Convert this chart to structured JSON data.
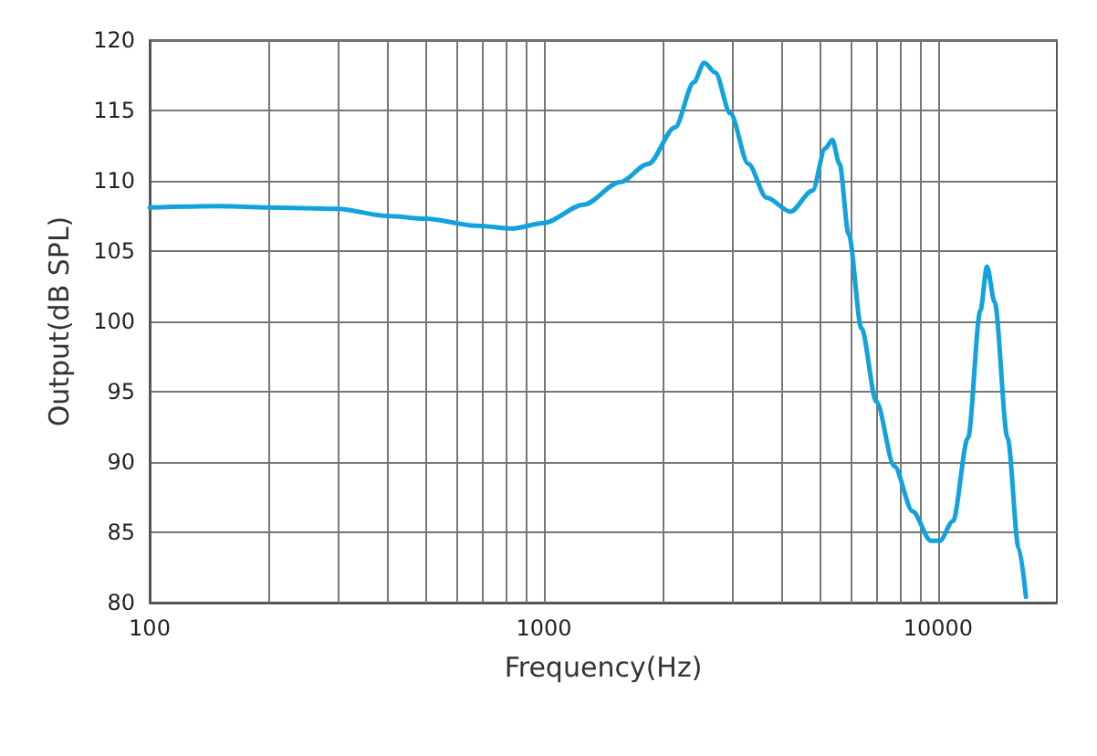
{
  "chart_data": {
    "type": "line",
    "xlabel": "Frequency(Hz)",
    "ylabel": "Output(dB SPL)",
    "log": "x",
    "grid": true,
    "marker": "none",
    "line_style": "solid",
    "xlim": [
      100,
      20000
    ],
    "ylim": [
      80,
      120
    ],
    "xticks": [
      100,
      {
        "value": 200,
        "label": null
      },
      {
        "value": 300,
        "label": null
      },
      {
        "value": 400,
        "label": null
      },
      {
        "value": 500,
        "label": null
      },
      {
        "value": 600,
        "label": null
      },
      {
        "value": 700,
        "label": null
      },
      {
        "value": 800,
        "label": null
      },
      {
        "value": 900,
        "label": null
      },
      1000,
      {
        "value": 2000,
        "label": null
      },
      {
        "value": 3000,
        "label": null
      },
      {
        "value": 4000,
        "label": null
      },
      {
        "value": 5000,
        "label": null
      },
      {
        "value": 6000,
        "label": null
      },
      {
        "value": 7000,
        "label": null
      },
      {
        "value": 8000,
        "label": null
      },
      {
        "value": 9000,
        "label": null
      },
      10000
    ],
    "yticks": [
      80,
      85,
      90,
      95,
      100,
      105,
      110,
      115,
      120
    ],
    "x": [
      100,
      150,
      200,
      300,
      400,
      500,
      680,
      830,
      1000,
      1260,
      1560,
      1840,
      2150,
      2400,
      2550,
      2720,
      2970,
      3300,
      3670,
      4220,
      4800,
      5170,
      5390,
      5620,
      5930,
      6390,
      6970,
      7740,
      8610,
      9580,
      10100,
      10900,
      11900,
      12800,
      13300,
      13900,
      15000,
      16000,
      16700
    ],
    "series": [
      {
        "color": "#12a3dc",
        "values": [
          108.1,
          108.2,
          108.1,
          108.0,
          107.5,
          107.3,
          106.8,
          106.6,
          107.0,
          108.3,
          109.9,
          111.2,
          113.8,
          117.0,
          118.4,
          117.7,
          114.8,
          111.2,
          108.8,
          107.8,
          109.3,
          112.3,
          112.9,
          111.2,
          106.2,
          99.5,
          94.3,
          89.7,
          86.5,
          84.4,
          84.4,
          85.8,
          91.7,
          100.8,
          103.9,
          101.4,
          91.7,
          83.9,
          80.4
        ]
      }
    ]
  }
}
